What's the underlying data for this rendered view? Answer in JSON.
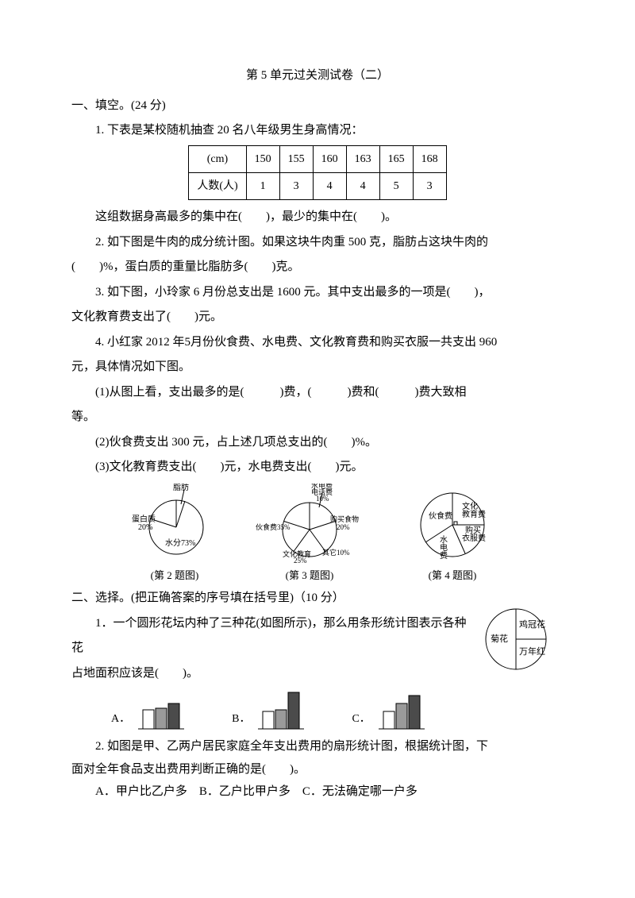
{
  "title": "第 5 单元过关测试卷（二）",
  "s1": {
    "head": "一、填空。(24 分)",
    "q1a": "1. 下表是某校随机抽查 20 名八年级男生身高情况：",
    "table": {
      "row1_label": "(cm)",
      "row2_label": "人数(人)",
      "cols": [
        "150",
        "155",
        "160",
        "163",
        "165",
        "168"
      ],
      "vals": [
        "1",
        "3",
        "4",
        "4",
        "5",
        "3"
      ]
    },
    "q1b": "这组数据身高最多的集中在(　　)，最少的集中在(　　)。",
    "q2": "2. 如下图是牛肉的成分统计图。如果这块牛肉重 500 克，脂肪占这块牛肉的(　　)%，蛋白质的重量比脂肪多(　　)克。",
    "q3": "3. 如下图，小玲家 6 月份总支出是 1600 元。其中支出最多的一项是(　　)，文化教育费支出了(　　)元。",
    "q4a": "4. 小红家 2012 年 5 月份伙食费、水电费、文化教育费和购买衣服一共支出 960元，具体情况如下图。",
    "q4b": "(1)从图上看，支出最多的是(　　　)费，(　　　)费和(　　　)费大致相等。",
    "q4c": "(2)伙食费支出 300 元，占上述几项总支出的(　　)%。",
    "q4d": "(3)文化教育费支出(　　)元，水电费支出(　　)元。",
    "fig2_cap": "(第 2 题图)",
    "fig3_cap": "(第 3 题图)",
    "fig4_cap": "(第 4 题图)"
  },
  "pie2": {
    "labels": {
      "fat": "脂肪",
      "protein": "蛋白质\n20%",
      "water": "水分73%"
    },
    "colors": {
      "line": "#000",
      "bg": "#fff",
      "fat": "#fff",
      "protein": "#fff",
      "water": "#fff"
    }
  },
  "pie3": {
    "labels": {
      "we": "水电费\n电话费\n10%",
      "food": "伙食费35%",
      "shop": "购买食物\n20%",
      "cult": "文化教育\n25%",
      "other": "其它10%"
    }
  },
  "pie4": {
    "labels": {
      "food": "伙食费",
      "cult": "文化\n教育费",
      "cloth": "购买\n衣服费",
      "we": "水\n电\n费"
    }
  },
  "s2": {
    "head": "二、选择。(把正确答案的序号填在括号里)（10 分）",
    "q1": "1．一个圆形花坛内种了三种花(如图所示)，那么用条形统计图表示各种花占地面积应该是(　　)。",
    "opts": {
      "a": "A．",
      "b": "B．",
      "c": "C．"
    },
    "bars": {
      "a": [
        24,
        26,
        32
      ],
      "b": [
        22,
        24,
        46
      ],
      "c": [
        22,
        32,
        42
      ],
      "colors": [
        "#ffffff",
        "#9a9a9a",
        "#4b4b4b"
      ],
      "width": 14
    },
    "q1pie": {
      "labels": {
        "ju": "菊花",
        "jg": "鸡冠花",
        "wnh": "万年红"
      }
    },
    "q2": "2. 如图是甲、乙两户居民家庭全年支出费用的扇形统计图，根据统计图，下面对全年食品支出费用判断正确的是(　　)。",
    "q2opts": "A．甲户比乙户多　B．乙户比甲户多　C．无法确定哪一户多"
  }
}
